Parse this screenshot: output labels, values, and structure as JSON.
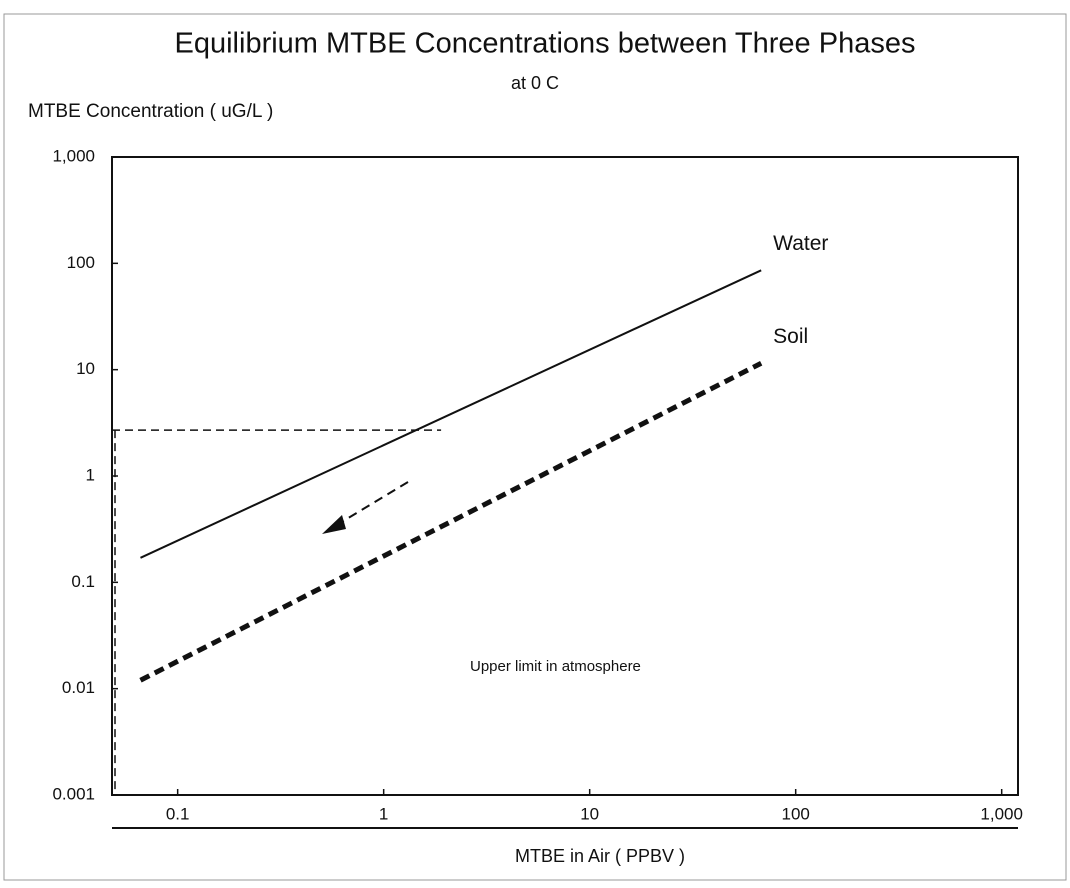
{
  "chart_data": {
    "type": "line",
    "title": "Equilibrium MTBE Concentrations between Three Phases",
    "subtitle": "at 0 C",
    "y_label": "MTBE Concentration ( uG/L )",
    "x_label": "MTBE in Air ( PPBV )",
    "x_log": true,
    "y_log": true,
    "xlim": [
      0.048,
      1200
    ],
    "ylim": [
      0.001,
      1000
    ],
    "xticks": [
      0.1,
      1,
      10,
      100,
      {
        "value": 1000,
        "label": "1,000"
      }
    ],
    "yticks": [
      0.001,
      0.01,
      0.1,
      1,
      10,
      100,
      {
        "value": 1000,
        "label": "1,000"
      }
    ],
    "series": [
      {
        "name": "Water",
        "color": "#111111",
        "style": "solid",
        "x": [
          0.066,
          68
        ],
        "values": [
          0.17,
          86
        ]
      },
      {
        "name": "Soil",
        "color": "#111111",
        "style": "dashed",
        "x": [
          0.066,
          68
        ],
        "values": [
          0.012,
          11.5
        ]
      }
    ],
    "reference": {
      "x": 1.9,
      "y": 2.7
    },
    "annotations": [
      "Upper limit in atmosphere"
    ]
  }
}
